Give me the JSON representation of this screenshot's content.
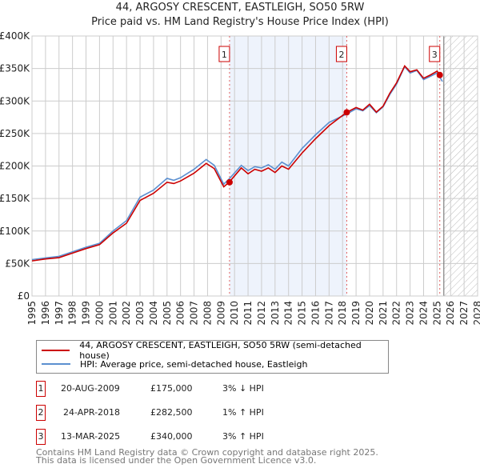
{
  "chart_data": {
    "type": "line",
    "title": "44, ARGOSY CRESCENT, EASTLEIGH, SO50 5RW",
    "subtitle": "Price paid vs. HM Land Registry's House Price Index (HPI)",
    "xlim": [
      1995,
      2028
    ],
    "ylim": [
      0,
      400000
    ],
    "x_ticks": [
      "1995",
      "1996",
      "1997",
      "1998",
      "1999",
      "2000",
      "2001",
      "2002",
      "2003",
      "2004",
      "2005",
      "2006",
      "2007",
      "2008",
      "2009",
      "2010",
      "2011",
      "2012",
      "2013",
      "2014",
      "2015",
      "2016",
      "2017",
      "2018",
      "2019",
      "2020",
      "2021",
      "2022",
      "2023",
      "2024",
      "2025",
      "2026",
      "2027",
      "2028"
    ],
    "y_ticks": [
      {
        "v": 0,
        "label": "£0"
      },
      {
        "v": 50000,
        "label": "£50K"
      },
      {
        "v": 100000,
        "label": "£100K"
      },
      {
        "v": 150000,
        "label": "£150K"
      },
      {
        "v": 200000,
        "label": "£200K"
      },
      {
        "v": 250000,
        "label": "£250K"
      },
      {
        "v": 300000,
        "label": "£300K"
      },
      {
        "v": 350000,
        "label": "£350K"
      },
      {
        "v": 400000,
        "label": "£400K"
      }
    ],
    "series": [
      {
        "name": "44, ARGOSY CRESCENT, EASTLEIGH, SO50 5RW (semi-detached house)",
        "color": "#cc0000",
        "x": [
          1995,
          1996,
          1997,
          1998,
          1999,
          2000,
          2001,
          2002,
          2003,
          2004,
          2005,
          2005.5,
          2006,
          2007,
          2007.9,
          2008.5,
          2009.2,
          2009.6,
          2010.5,
          2011,
          2011.5,
          2012,
          2012.5,
          2013,
          2013.5,
          2014,
          2015,
          2016,
          2017,
          2018.3,
          2019,
          2019.5,
          2020,
          2020.5,
          2021,
          2021.5,
          2022,
          2022.6,
          2023,
          2023.5,
          2024,
          2024.5,
          2025,
          2025.2
        ],
        "y": [
          54000,
          57000,
          59000,
          66000,
          73000,
          79000,
          97000,
          112000,
          147000,
          158000,
          175000,
          173000,
          177000,
          189000,
          204000,
          196000,
          168000,
          175000,
          197000,
          188000,
          195000,
          192000,
          197000,
          190000,
          200000,
          195000,
          220000,
          242000,
          262000,
          282500,
          290000,
          286000,
          295000,
          283000,
          292000,
          312000,
          328000,
          354000,
          345000,
          348000,
          335000,
          340000,
          346000,
          340000
        ]
      },
      {
        "name": "HPI: Average price, semi-detached house, Eastleigh",
        "color": "#5b8fd0",
        "x": [
          1995,
          1996,
          1997,
          1998,
          1999,
          2000,
          2001,
          2002,
          2003,
          2004,
          2005,
          2005.5,
          2006,
          2007,
          2007.9,
          2008.5,
          2009.2,
          2009.6,
          2010.5,
          2011,
          2011.5,
          2012,
          2012.5,
          2013,
          2013.5,
          2014,
          2015,
          2016,
          2017,
          2018.3,
          2019,
          2019.5,
          2020,
          2020.5,
          2021,
          2021.5,
          2022,
          2022.6,
          2023,
          2023.5,
          2024,
          2024.5,
          2025,
          2025.4
        ],
        "y": [
          56000,
          58500,
          61000,
          68000,
          75000,
          81000,
          100000,
          116000,
          152000,
          163000,
          181000,
          178000,
          182000,
          195000,
          210000,
          201000,
          172000,
          180000,
          201000,
          193000,
          199000,
          197000,
          202000,
          195000,
          206000,
          200000,
          227000,
          248000,
          267000,
          280000,
          288000,
          285000,
          293000,
          282000,
          291000,
          310000,
          326000,
          353000,
          343000,
          347000,
          333000,
          338000,
          343000,
          330000
        ]
      }
    ],
    "sales": [
      {
        "num": "1",
        "x": 2009.63,
        "y": 175000,
        "date": "20-AUG-2009",
        "price": "£175,000",
        "hpi": "3% ↓ HPI"
      },
      {
        "num": "2",
        "x": 2018.31,
        "y": 282500,
        "date": "24-APR-2018",
        "price": "£282,500",
        "hpi": "1% ↑ HPI"
      },
      {
        "num": "3",
        "x": 2025.2,
        "y": 340000,
        "date": "13-MAR-2025",
        "price": "£340,000",
        "hpi": "3% ↑ HPI"
      }
    ],
    "shade_range": [
      2009.63,
      2018.31
    ],
    "forecast_from": 2025.5,
    "legend_position": "below"
  },
  "footer": {
    "line1": "Contains HM Land Registry data © Crown copyright and database right 2025.",
    "line2": "This data is licensed under the Open Government Licence v3.0."
  }
}
